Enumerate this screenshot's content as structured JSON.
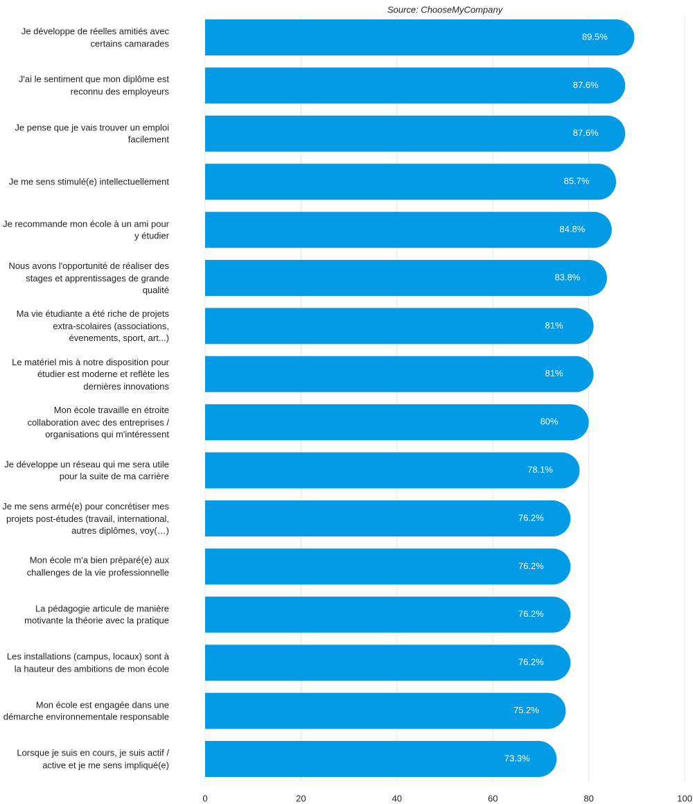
{
  "chart_data": {
    "type": "barh",
    "source": "Source: ChooseMyCompany",
    "categories": [
      "Je développe de réelles amitiés avec certains camarades",
      "J'ai le sentiment que mon diplôme est reconnu des employeurs",
      "Je pense que je vais trouver un emploi facilement",
      "Je me sens stimulé(e) intellectuellement",
      "Je recommande mon école à un ami pour y étudier",
      "Nous avons l'opportunité de réaliser des stages et apprentissages de grande qualité",
      "Ma vie étudiante a été riche de projets extra-scolaires (associations, évenements, sport, art...)",
      "Le matériel mis à notre disposition pour étudier est moderne et reflète les dernières innovations",
      "Mon école travaille en étroite collaboration avec des entreprises / organisations qui m'intéressent",
      "Je développe un réseau qui me sera utile pour la suite de ma carrière",
      "Je me sens armé(e) pour concrétiser mes projets post-études (travail, international, autres diplômes, voy(…)",
      "Mon école m'a bien préparé(e) aux challenges de la vie professionnelle",
      "La pédagogie articule de manière motivante la théorie avec la pratique",
      "Les installations (campus, locaux) sont à la hauteur des ambitions de mon école",
      "Mon école est engagée dans une démarche environnementale responsable",
      "Lorsque je suis en cours, je suis actif / active et je me sens impliqué(e)"
    ],
    "values": [
      89.5,
      87.6,
      87.6,
      85.7,
      84.8,
      83.8,
      81,
      81,
      80,
      78.1,
      76.2,
      76.2,
      76.2,
      76.2,
      75.2,
      73.3
    ],
    "value_labels": [
      "89.5%",
      "87.6%",
      "87.6%",
      "85.7%",
      "84.8%",
      "83.8%",
      "81%",
      "81%",
      "80%",
      "78.1%",
      "76.2%",
      "76.2%",
      "76.2%",
      "76.2%",
      "75.2%",
      "73.3%"
    ],
    "color": "#039be5",
    "xlim": [
      0,
      100
    ],
    "xticks": [
      0,
      20,
      40,
      60,
      80,
      100
    ],
    "grid": true
  }
}
